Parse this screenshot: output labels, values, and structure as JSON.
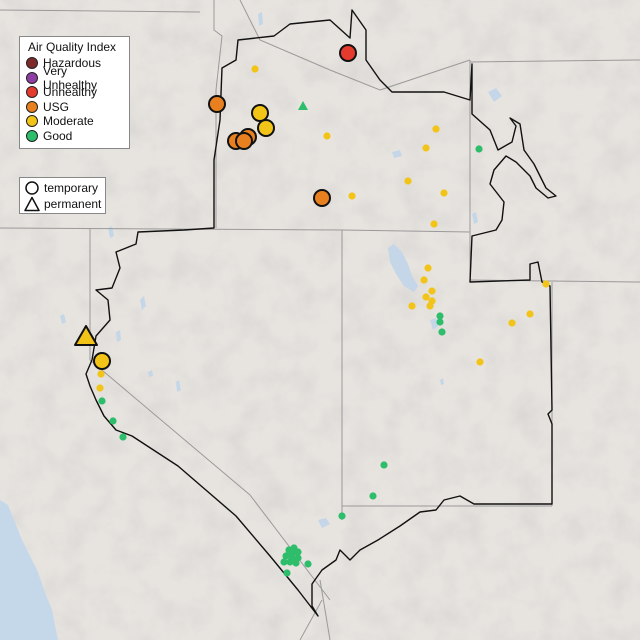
{
  "legend": {
    "title": "Air Quality Index",
    "categories": [
      {
        "label": "Hazardous",
        "color": "#7e2a2a"
      },
      {
        "label": "Very Unhealthy",
        "color": "#8e3fa4"
      },
      {
        "label": "Unhealthy",
        "color": "#e53a2e"
      },
      {
        "label": "USG",
        "color": "#e8801f"
      },
      {
        "label": "Moderate",
        "color": "#f2c418"
      },
      {
        "label": "Good",
        "color": "#2ebd6b"
      }
    ]
  },
  "shape_legend": {
    "temporary": "temporary",
    "permanent": "permanent"
  }
}
